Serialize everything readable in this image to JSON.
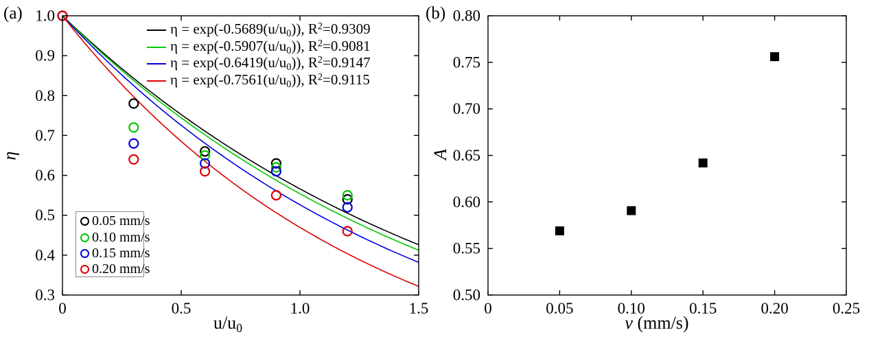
{
  "figure": {
    "panel_a_label": "(a)",
    "panel_b_label": "(b)"
  },
  "colors": {
    "axis": "#000000",
    "background": "#ffffff",
    "black": "#000000",
    "green": "#00c800",
    "blue": "#0000dd",
    "red": "#dd0000",
    "legend_box_border": "#888888"
  },
  "chart_data": [
    {
      "id": "a",
      "panel": "(a)",
      "type": "scatter",
      "title": "",
      "xlabel": "u/u0",
      "xlabel_base": "u/u",
      "xlabel_sub": "0",
      "ylabel": "η",
      "xlim": [
        0,
        1.5
      ],
      "ylim": [
        0.3,
        1.0
      ],
      "xticks": [
        0,
        0.5,
        1.0,
        1.5
      ],
      "xtick_labels": [
        "0",
        "0.5",
        "1.0",
        "1.5"
      ],
      "yticks": [
        0.3,
        0.4,
        0.5,
        0.6,
        0.7,
        0.8,
        0.9,
        1.0
      ],
      "ytick_labels": [
        "0.3",
        "0.4",
        "0.5",
        "0.6",
        "0.7",
        "0.8",
        "0.9",
        "1.0"
      ],
      "grid": false,
      "marker": "open-circle",
      "series_legend_position": "lower-left",
      "fit_legend_position": "top-center",
      "series": [
        {
          "name": "0.05 mm/s",
          "color": "#000000",
          "x": [
            0,
            0.3,
            0.6,
            0.9,
            1.2
          ],
          "y": [
            1.0,
            0.78,
            0.66,
            0.63,
            0.54
          ]
        },
        {
          "name": "0.10 mm/s",
          "color": "#00c800",
          "x": [
            0,
            0.3,
            0.6,
            0.9,
            1.2
          ],
          "y": [
            1.0,
            0.72,
            0.65,
            0.62,
            0.55
          ]
        },
        {
          "name": "0.15 mm/s",
          "color": "#0000dd",
          "x": [
            0,
            0.3,
            0.6,
            0.9,
            1.2
          ],
          "y": [
            1.0,
            0.68,
            0.63,
            0.61,
            0.52
          ]
        },
        {
          "name": "0.20 mm/s",
          "color": "#dd0000",
          "x": [
            0,
            0.3,
            0.6,
            0.9,
            1.2
          ],
          "y": [
            1.0,
            0.64,
            0.61,
            0.55,
            0.46
          ]
        }
      ],
      "fits": [
        {
          "name": "η = exp(-0.5689(u/u₀)), R²=0.9309",
          "k": 0.5689,
          "r2": 0.9309,
          "color": "#000000",
          "p1": "η = exp(-0.5689(u/u",
          "sub": "0",
          "p2": ")), R",
          "sup": "2",
          "p3": "=0.9309"
        },
        {
          "name": "η = exp(-0.5907(u/u₀)), R²=0.9081",
          "k": 0.5907,
          "r2": 0.9081,
          "color": "#00c800",
          "p1": "η = exp(-0.5907(u/u",
          "sub": "0",
          "p2": ")), R",
          "sup": "2",
          "p3": "=0.9081"
        },
        {
          "name": "η = exp(-0.6419(u/u₀)), R²=0.9147",
          "k": 0.6419,
          "r2": 0.9147,
          "color": "#0000dd",
          "p1": "η = exp(-0.6419(u/u",
          "sub": "0",
          "p2": ")), R",
          "sup": "2",
          "p3": "=0.9147"
        },
        {
          "name": "η = exp(-0.7561(u/u₀)), R²=0.9115",
          "k": 0.7561,
          "r2": 0.9115,
          "color": "#dd0000",
          "p1": "η = exp(-0.7561(u/u",
          "sub": "0",
          "p2": ")), R",
          "sup": "2",
          "p3": "=0.9115"
        }
      ]
    },
    {
      "id": "b",
      "panel": "(b)",
      "type": "scatter",
      "title": "",
      "xlabel": "v (mm/s)",
      "xlabel_italic": "v",
      "xlabel_rest": " (mm/s)",
      "ylabel": "A",
      "xlim": [
        0,
        0.25
      ],
      "ylim": [
        0.5,
        0.8
      ],
      "xticks": [
        0,
        0.05,
        0.1,
        0.15,
        0.2,
        0.25
      ],
      "xtick_labels": [
        "0",
        "0.05",
        "0.10",
        "0.15",
        "0.20",
        "0.25"
      ],
      "yticks": [
        0.5,
        0.55,
        0.6,
        0.65,
        0.7,
        0.75,
        0.8
      ],
      "ytick_labels": [
        "0.50",
        "0.55",
        "0.60",
        "0.65",
        "0.70",
        "0.75",
        "0.80"
      ],
      "grid": false,
      "marker": "filled-square",
      "marker_color": "#000000",
      "x": [
        0.05,
        0.1,
        0.15,
        0.2
      ],
      "y": [
        0.5689,
        0.5907,
        0.6419,
        0.7561
      ]
    }
  ]
}
